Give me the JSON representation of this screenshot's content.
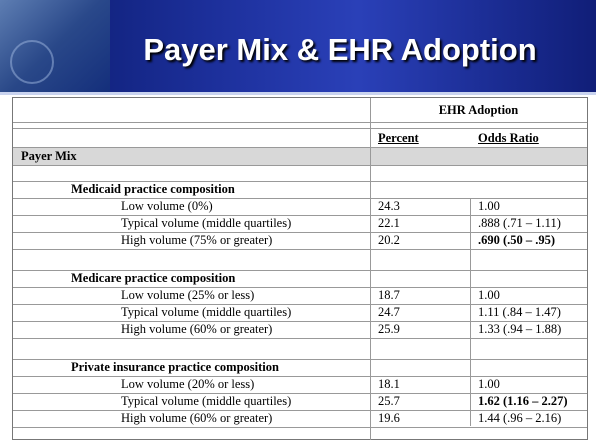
{
  "title": "Payer Mix & EHR Adoption",
  "table": {
    "group_header": "EHR Adoption",
    "columns": [
      "Percent",
      "Odds Ratio"
    ],
    "section": "Payer Mix",
    "groups": [
      {
        "label": "Medicaid practice composition",
        "rows": [
          {
            "label": "Low volume (0%)",
            "percent": "24.3",
            "odds": "1.00"
          },
          {
            "label": "Typical volume (middle quartiles)",
            "percent": "22.1",
            "odds": ".888 (.71 – 1.11)"
          },
          {
            "label": "High volume (75% or greater)",
            "percent": "20.2",
            "odds": ".690 (.50 – .95)",
            "bold": true
          }
        ]
      },
      {
        "label": "Medicare practice composition",
        "rows": [
          {
            "label": "Low volume (25% or less)",
            "percent": "18.7",
            "odds": "1.00"
          },
          {
            "label": "Typical volume (middle quartiles)",
            "percent": "24.7",
            "odds": "1.11 (.84 – 1.47)"
          },
          {
            "label": "High volume (60% or greater)",
            "percent": "25.9",
            "odds": "1.33 (.94 – 1.88)"
          }
        ]
      },
      {
        "label": "Private insurance practice composition",
        "rows": [
          {
            "label": "Low volume (20% or less)",
            "percent": "18.1",
            "odds": "1.00"
          },
          {
            "label": "Typical volume (middle quartiles)",
            "percent": "25.7",
            "odds": "1.62 (1.16 – 2.27)",
            "bold": true
          },
          {
            "label": "High volume (60% or greater)",
            "percent": "19.6",
            "odds": "1.44 (.96 – 2.16)"
          }
        ]
      }
    ]
  }
}
